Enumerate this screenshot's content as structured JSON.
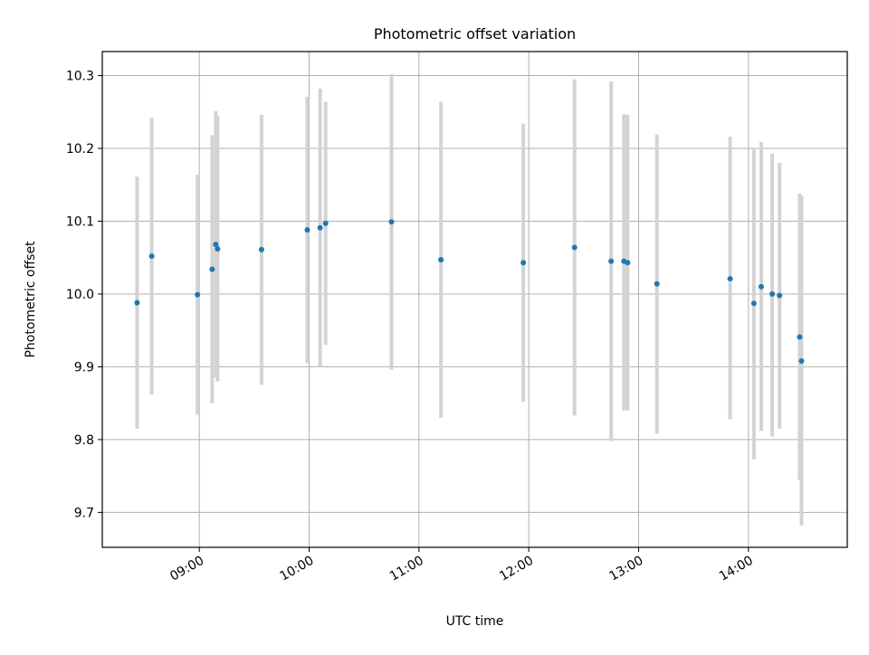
{
  "chart_data": {
    "type": "scatter",
    "title": "Photometric offset variation",
    "xlabel": "UTC time",
    "ylabel": "Photometric offset",
    "x_scale": "time",
    "x_range": [
      "08:07",
      "14:54"
    ],
    "xticks": [
      "09:00",
      "10:00",
      "11:00",
      "12:00",
      "13:00",
      "14:00"
    ],
    "ylim": [
      9.652,
      10.333
    ],
    "yticks": [
      "9.7",
      "9.8",
      "9.9",
      "10.0",
      "10.1",
      "10.2",
      "10.3"
    ],
    "grid": true,
    "colors": {
      "point": "#1f77b4",
      "errorbar": "#d3d3d3",
      "grid": "#b0b0b0"
    },
    "series": [
      {
        "points": [
          {
            "x": "08:26",
            "y": 9.988,
            "ylow": 9.815,
            "yhigh": 10.161
          },
          {
            "x": "08:34",
            "y": 10.052,
            "ylow": 9.862,
            "yhigh": 10.242
          },
          {
            "x": "08:59",
            "y": 9.999,
            "ylow": 9.834,
            "yhigh": 10.164
          },
          {
            "x": "09:07",
            "y": 10.034,
            "ylow": 9.85,
            "yhigh": 10.218
          },
          {
            "x": "09:09",
            "y": 10.068,
            "ylow": 9.885,
            "yhigh": 10.251
          },
          {
            "x": "09:10",
            "y": 10.062,
            "ylow": 9.88,
            "yhigh": 10.245
          },
          {
            "x": "09:34",
            "y": 10.061,
            "ylow": 9.875,
            "yhigh": 10.246
          },
          {
            "x": "09:59",
            "y": 10.088,
            "ylow": 9.905,
            "yhigh": 10.271
          },
          {
            "x": "10:06",
            "y": 10.091,
            "ylow": 9.9,
            "yhigh": 10.282
          },
          {
            "x": "10:09",
            "y": 10.097,
            "ylow": 9.93,
            "yhigh": 10.264
          },
          {
            "x": "10:45",
            "y": 10.099,
            "ylow": 9.896,
            "yhigh": 10.302
          },
          {
            "x": "11:12",
            "y": 10.047,
            "ylow": 9.83,
            "yhigh": 10.264
          },
          {
            "x": "11:57",
            "y": 10.043,
            "ylow": 9.852,
            "yhigh": 10.234
          },
          {
            "x": "12:25",
            "y": 10.064,
            "ylow": 9.833,
            "yhigh": 10.295
          },
          {
            "x": "12:45",
            "y": 10.045,
            "ylow": 9.798,
            "yhigh": 10.292
          },
          {
            "x": "12:52",
            "y": 10.045,
            "ylow": 9.84,
            "yhigh": 10.247
          },
          {
            "x": "12:54",
            "y": 10.043,
            "ylow": 9.84,
            "yhigh": 10.246
          },
          {
            "x": "13:10",
            "y": 10.014,
            "ylow": 9.808,
            "yhigh": 10.219
          },
          {
            "x": "13:50",
            "y": 10.021,
            "ylow": 9.828,
            "yhigh": 10.216
          },
          {
            "x": "14:03",
            "y": 9.987,
            "ylow": 9.773,
            "yhigh": 10.2
          },
          {
            "x": "14:07",
            "y": 10.01,
            "ylow": 9.812,
            "yhigh": 10.209
          },
          {
            "x": "14:13",
            "y": 10.0,
            "ylow": 9.804,
            "yhigh": 10.193
          },
          {
            "x": "14:17",
            "y": 9.998,
            "ylow": 9.815,
            "yhigh": 10.18
          },
          {
            "x": "14:28",
            "y": 9.941,
            "ylow": 9.744,
            "yhigh": 10.138
          },
          {
            "x": "14:29",
            "y": 9.908,
            "ylow": 9.682,
            "yhigh": 10.135
          }
        ]
      }
    ]
  }
}
